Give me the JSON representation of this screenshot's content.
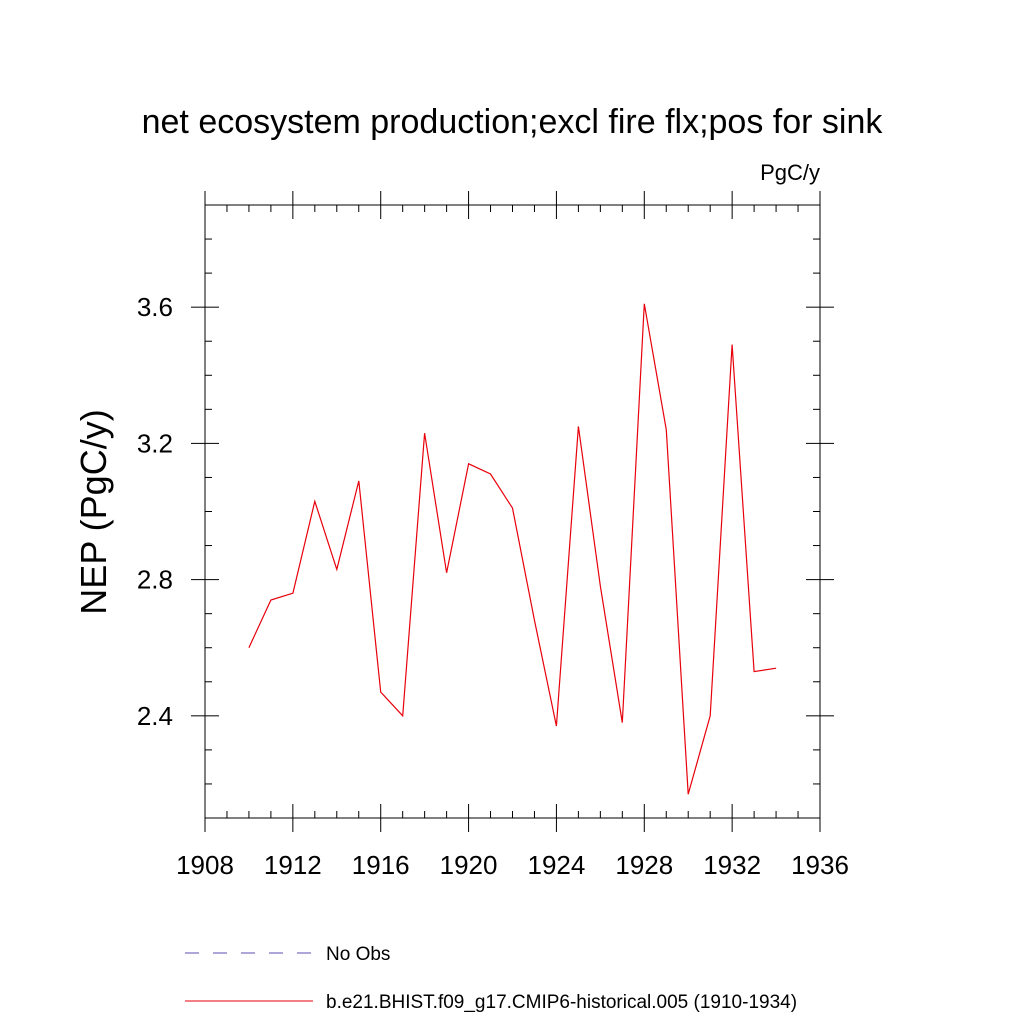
{
  "chart_data": {
    "type": "line",
    "title": "net ecosystem production;excl fire flx;pos for sink",
    "units": "PgC/y",
    "xlabel": "",
    "ylabel": "NEP  (PgC/y)",
    "xlim": [
      1908,
      1936
    ],
    "ylim": [
      2.1,
      3.9
    ],
    "xticks": [
      1908,
      1912,
      1916,
      1920,
      1924,
      1928,
      1932,
      1936
    ],
    "xtick_labels": [
      "1908",
      "1912",
      "1916",
      "1920",
      "1924",
      "1928",
      "1932",
      "1936"
    ],
    "yticks": [
      2.4,
      2.8,
      3.2,
      3.6
    ],
    "ytick_labels": [
      "2.4",
      "2.8",
      "3.2",
      "3.6"
    ],
    "grid": false,
    "legend_position": "bottom",
    "legend": [
      {
        "label": "No Obs",
        "color": "#5a4fb0",
        "style": "dashed"
      },
      {
        "label": "b.e21.BHIST.f09_g17.CMIP6-historical.005 (1910-1934)",
        "color": "#e8000b",
        "style": "solid"
      }
    ],
    "series": [
      {
        "name": "b.e21.BHIST.f09_g17.CMIP6-historical.005 (1910-1934)",
        "color": "#e8000b",
        "x": [
          1910,
          1911,
          1912,
          1913,
          1914,
          1915,
          1916,
          1917,
          1918,
          1919,
          1920,
          1921,
          1922,
          1923,
          1924,
          1925,
          1926,
          1927,
          1928,
          1929,
          1930,
          1931,
          1932,
          1933,
          1934
        ],
        "values": [
          2.6,
          2.74,
          2.76,
          3.03,
          2.83,
          3.09,
          2.47,
          2.4,
          3.23,
          2.82,
          3.14,
          3.11,
          3.01,
          2.68,
          2.37,
          3.25,
          2.78,
          2.38,
          3.61,
          3.24,
          2.17,
          2.4,
          3.49,
          2.53,
          2.54
        ]
      }
    ]
  }
}
